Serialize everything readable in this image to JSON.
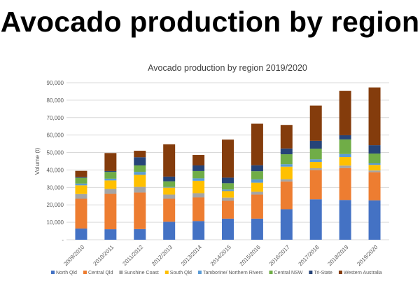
{
  "slide": {
    "title": "Avocado production by region"
  },
  "chart_data": {
    "type": "bar",
    "stacked": true,
    "title": "Avocado production by region 2019/2020",
    "xlabel": "",
    "ylabel": "Volume (t)",
    "ylim": [
      0,
      90000
    ],
    "yticks": [
      0,
      10000,
      20000,
      30000,
      40000,
      50000,
      60000,
      70000,
      80000,
      90000
    ],
    "ytick_labels": [
      "-",
      "10,000",
      "20,000",
      "30,000",
      "40,000",
      "50,000",
      "60,000",
      "70,000",
      "80,000",
      "90,000"
    ],
    "grid": true,
    "legend_position": "bottom",
    "categories": [
      "2009/2010",
      "2010/2011",
      "2011/2012",
      "2012/2013",
      "2013/2014",
      "2014/2015",
      "2015/2016",
      "2016/2017",
      "2017/2018",
      "2018/2019",
      "2019/2020"
    ],
    "series": [
      {
        "name": "North Qld",
        "color": "#4472C4",
        "values": [
          6400,
          6000,
          6100,
          10300,
          10700,
          12100,
          12100,
          17500,
          23200,
          22800,
          22600
        ]
      },
      {
        "name": "Central Qld",
        "color": "#ED7D31",
        "values": [
          17100,
          20300,
          21000,
          13200,
          13600,
          10200,
          13800,
          15900,
          16700,
          18300,
          16100
        ]
      },
      {
        "name": "Sunshine Coast",
        "color": "#A5A5A5",
        "values": [
          2700,
          2800,
          3200,
          2400,
          2400,
          1900,
          1600,
          1300,
          1100,
          1400,
          1000
        ]
      },
      {
        "name": "South Qld",
        "color": "#FFC000",
        "values": [
          5000,
          4900,
          6900,
          4000,
          7100,
          3700,
          5200,
          7200,
          3600,
          4900,
          3200
        ]
      },
      {
        "name": "Tamborine/ Northern Rivers",
        "color": "#5B9BD5",
        "values": [
          1000,
          1000,
          1700,
          400,
          1400,
          900,
          1900,
          1400,
          1500,
          1700,
          900
        ]
      },
      {
        "name": "Central NSW",
        "color": "#70AD47",
        "values": [
          3300,
          3900,
          3700,
          3200,
          4200,
          3600,
          4700,
          5700,
          6100,
          8400,
          5600
        ]
      },
      {
        "name": "Tri-State",
        "color": "#264478",
        "values": [
          400,
          500,
          4700,
          2700,
          3200,
          3200,
          3400,
          3300,
          4500,
          2400,
          4800
        ]
      },
      {
        "name": "Western Australia",
        "color": "#843C0C",
        "values": [
          3600,
          10300,
          3700,
          18500,
          6000,
          21800,
          23800,
          13500,
          20200,
          25400,
          33100
        ]
      }
    ]
  }
}
